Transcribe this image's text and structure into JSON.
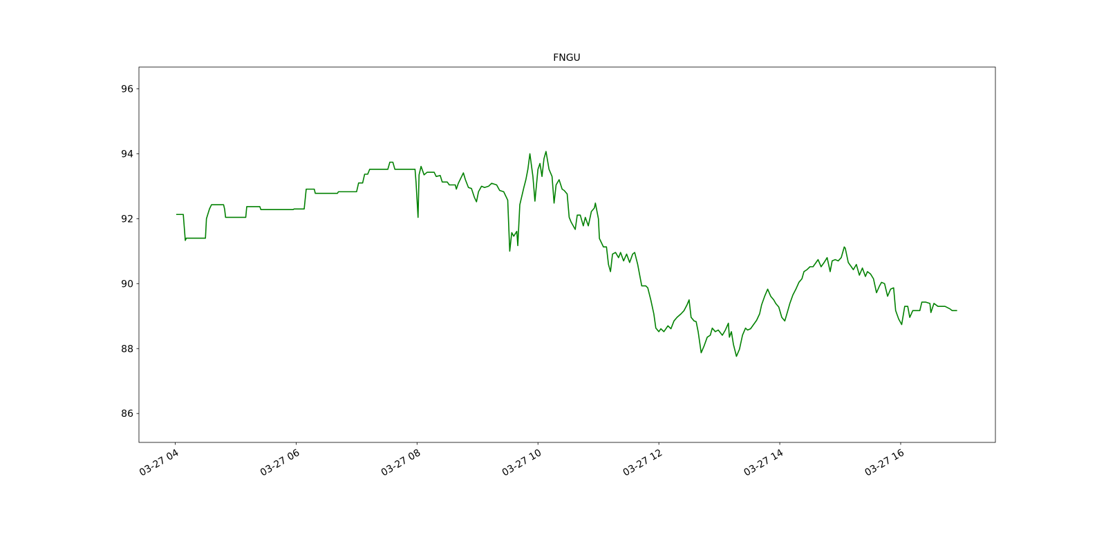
{
  "chart_data": {
    "type": "line",
    "title": "FNGU",
    "color": "#008000",
    "x": [
      "03-27 04:01",
      "03-27 04:08",
      "03-27 04:10",
      "03-27 04:11",
      "03-27 04:30",
      "03-27 04:31",
      "03-27 04:34",
      "03-27 04:36",
      "03-27 04:48",
      "03-27 04:49",
      "03-27 04:50",
      "03-27 05:10",
      "03-27 05:11",
      "03-27 05:24",
      "03-27 05:25",
      "03-27 05:57",
      "03-27 05:58",
      "03-27 06:08",
      "03-27 06:10",
      "03-27 06:18",
      "03-27 06:19",
      "03-27 06:41",
      "03-27 06:42",
      "03-27 07:00",
      "03-27 07:02",
      "03-27 07:06",
      "03-27 07:08",
      "03-27 07:11",
      "03-27 07:13",
      "03-27 07:31",
      "03-27 07:33",
      "03-27 07:36",
      "03-27 07:38",
      "03-27 07:58",
      "03-27 07:59",
      "03-27 08:01",
      "03-27 08:02",
      "03-27 08:04",
      "03-27 08:07",
      "03-27 08:10",
      "03-27 08:17",
      "03-27 08:19",
      "03-27 08:23",
      "03-27 08:25",
      "03-27 08:30",
      "03-27 08:32",
      "03-27 08:38",
      "03-27 08:39",
      "03-27 08:41",
      "03-27 08:46",
      "03-27 08:48",
      "03-27 08:51",
      "03-27 08:54",
      "03-27 08:57",
      "03-27 08:59",
      "03-27 09:01",
      "03-27 09:04",
      "03-27 09:07",
      "03-27 09:11",
      "03-27 09:14",
      "03-27 09:19",
      "03-27 09:22",
      "03-27 09:26",
      "03-27 09:30",
      "03-27 09:32",
      "03-27 09:34",
      "03-27 09:36",
      "03-27 09:39",
      "03-27 09:40",
      "03-27 09:42",
      "03-27 09:46",
      "03-27 09:48",
      "03-27 09:50",
      "03-27 09:52",
      "03-27 09:55",
      "03-27 09:57",
      "03-27 10:00",
      "03-27 10:02",
      "03-27 10:04",
      "03-27 10:06",
      "03-27 10:08",
      "03-27 10:11",
      "03-27 10:14",
      "03-27 10:16",
      "03-27 10:18",
      "03-27 10:21",
      "03-27 10:24",
      "03-27 10:26",
      "03-27 10:29",
      "03-27 10:31",
      "03-27 10:33",
      "03-27 10:37",
      "03-27 10:39",
      "03-27 10:42",
      "03-27 10:45",
      "03-27 10:47",
      "03-27 10:50",
      "03-27 10:53",
      "03-27 10:56",
      "03-27 10:57",
      "03-27 11:00",
      "03-27 11:01",
      "03-27 11:05",
      "03-27 11:08",
      "03-27 11:10",
      "03-27 11:12",
      "03-27 11:14",
      "03-27 11:17",
      "03-27 11:20",
      "03-27 11:22",
      "03-27 11:25",
      "03-27 11:28",
      "03-27 11:31",
      "03-27 11:34",
      "03-27 11:36",
      "03-27 11:39",
      "03-27 11:41",
      "03-27 11:43",
      "03-27 11:47",
      "03-27 11:49",
      "03-27 11:52",
      "03-27 11:55",
      "03-27 11:57",
      "03-27 12:00",
      "03-27 12:02",
      "03-27 12:05",
      "03-27 12:09",
      "03-27 12:12",
      "03-27 12:15",
      "03-27 12:18",
      "03-27 12:22",
      "03-27 12:25",
      "03-27 12:28",
      "03-27 12:30",
      "03-27 12:32",
      "03-27 12:35",
      "03-27 12:37",
      "03-27 12:39",
      "03-27 12:42",
      "03-27 12:45",
      "03-27 12:48",
      "03-27 12:51",
      "03-27 12:53",
      "03-27 12:56",
      "03-27 12:59",
      "03-27 13:03",
      "03-27 13:06",
      "03-27 13:09",
      "03-27 13:10",
      "03-27 13:12",
      "03-27 13:14",
      "03-27 13:17",
      "03-27 13:20",
      "03-27 13:23",
      "03-27 13:26",
      "03-27 13:28",
      "03-27 13:31",
      "03-27 13:34",
      "03-27 13:37",
      "03-27 13:40",
      "03-27 13:42",
      "03-27 13:45",
      "03-27 13:48",
      "03-27 13:51",
      "03-27 13:54",
      "03-27 13:56",
      "03-27 13:59",
      "03-27 14:02",
      "03-27 14:05",
      "03-27 14:08",
      "03-27 14:10",
      "03-27 14:13",
      "03-27 14:16",
      "03-27 14:19",
      "03-27 14:22",
      "03-27 14:24",
      "03-27 14:27",
      "03-27 14:30",
      "03-27 14:33",
      "03-27 14:36",
      "03-27 14:38",
      "03-27 14:41",
      "03-27 14:44",
      "03-27 14:47",
      "03-27 14:50",
      "03-27 14:52",
      "03-27 14:55",
      "03-27 14:58",
      "03-27 15:01",
      "03-27 15:04",
      "03-27 15:05",
      "03-27 15:08",
      "03-27 15:11",
      "03-27 15:13",
      "03-27 15:16",
      "03-27 15:19",
      "03-27 15:22",
      "03-27 15:25",
      "03-27 15:27",
      "03-27 15:30",
      "03-27 15:33",
      "03-27 15:36",
      "03-27 15:39",
      "03-27 15:41",
      "03-27 15:44",
      "03-27 15:47",
      "03-27 15:50",
      "03-27 15:53",
      "03-27 15:55",
      "03-27 15:58",
      "03-27 16:01",
      "03-27 16:04",
      "03-27 16:07",
      "03-27 16:09",
      "03-27 16:12",
      "03-27 16:19",
      "03-27 16:21",
      "03-27 16:25",
      "03-27 16:29",
      "03-27 16:30",
      "03-27 16:33",
      "03-27 16:37",
      "03-27 16:44",
      "03-27 16:49",
      "03-27 16:51",
      "03-27 16:56"
    ],
    "values": [
      92.13,
      92.13,
      91.33,
      91.4,
      91.4,
      92.0,
      92.3,
      92.43,
      92.43,
      92.3,
      92.04,
      92.04,
      92.37,
      92.37,
      92.28,
      92.28,
      92.3,
      92.3,
      92.91,
      92.91,
      92.78,
      92.78,
      92.83,
      92.83,
      93.1,
      93.1,
      93.37,
      93.37,
      93.52,
      93.52,
      93.74,
      93.74,
      93.52,
      93.52,
      93.13,
      92.04,
      93.35,
      93.61,
      93.35,
      93.43,
      93.43,
      93.3,
      93.33,
      93.13,
      93.13,
      93.04,
      93.04,
      92.91,
      93.09,
      93.41,
      93.2,
      92.96,
      92.93,
      92.65,
      92.52,
      92.83,
      93.0,
      92.96,
      93.0,
      93.09,
      93.04,
      92.87,
      92.83,
      92.57,
      91.0,
      91.57,
      91.46,
      91.61,
      91.17,
      92.43,
      92.96,
      93.2,
      93.52,
      94.0,
      93.3,
      92.54,
      93.52,
      93.7,
      93.3,
      93.85,
      94.07,
      93.52,
      93.3,
      92.48,
      93.04,
      93.2,
      92.91,
      92.87,
      92.76,
      92.04,
      91.89,
      91.67,
      92.11,
      92.11,
      91.78,
      92.04,
      91.78,
      92.22,
      92.33,
      92.48,
      92.0,
      91.39,
      91.13,
      91.13,
      90.59,
      90.37,
      90.91,
      90.96,
      90.8,
      90.96,
      90.7,
      90.91,
      90.65,
      90.91,
      90.96,
      90.59,
      90.26,
      89.93,
      89.93,
      89.87,
      89.5,
      89.07,
      88.63,
      88.52,
      88.61,
      88.52,
      88.7,
      88.61,
      88.85,
      88.96,
      89.07,
      89.17,
      89.35,
      89.5,
      88.96,
      88.85,
      88.83,
      88.52,
      87.87,
      88.09,
      88.35,
      88.41,
      88.63,
      88.52,
      88.57,
      88.41,
      88.57,
      88.78,
      88.35,
      88.52,
      88.13,
      87.76,
      87.98,
      88.41,
      88.63,
      88.57,
      88.61,
      88.74,
      88.87,
      89.07,
      89.35,
      89.61,
      89.83,
      89.61,
      89.5,
      89.39,
      89.28,
      88.96,
      88.85,
      89.17,
      89.39,
      89.65,
      89.83,
      90.04,
      90.15,
      90.37,
      90.43,
      90.52,
      90.52,
      90.65,
      90.74,
      90.52,
      90.65,
      90.8,
      90.37,
      90.7,
      90.74,
      90.7,
      90.8,
      91.13,
      91.09,
      90.65,
      90.52,
      90.43,
      90.59,
      90.26,
      90.48,
      90.22,
      90.37,
      90.3,
      90.15,
      89.72,
      89.93,
      90.04,
      90.0,
      89.61,
      89.83,
      89.87,
      89.17,
      88.91,
      88.74,
      89.3,
      89.3,
      88.96,
      89.17,
      89.17,
      89.43,
      89.43,
      89.39,
      89.11,
      89.39,
      89.3,
      89.3,
      89.22,
      89.17,
      89.17
    ],
    "xlim": [
      "03-27 03:24",
      "03-27 17:34"
    ],
    "xticks": [
      {
        "value": "03-27 04:00",
        "label": "03-27 04"
      },
      {
        "value": "03-27 06:00",
        "label": "03-27 06"
      },
      {
        "value": "03-27 08:00",
        "label": "03-27 08"
      },
      {
        "value": "03-27 10:00",
        "label": "03-27 10"
      },
      {
        "value": "03-27 12:00",
        "label": "03-27 12"
      },
      {
        "value": "03-27 14:00",
        "label": "03-27 14"
      },
      {
        "value": "03-27 16:00",
        "label": "03-27 16"
      }
    ],
    "ylim": [
      85.11,
      96.67
    ],
    "yticks": [
      86,
      88,
      90,
      92,
      94,
      96
    ]
  }
}
